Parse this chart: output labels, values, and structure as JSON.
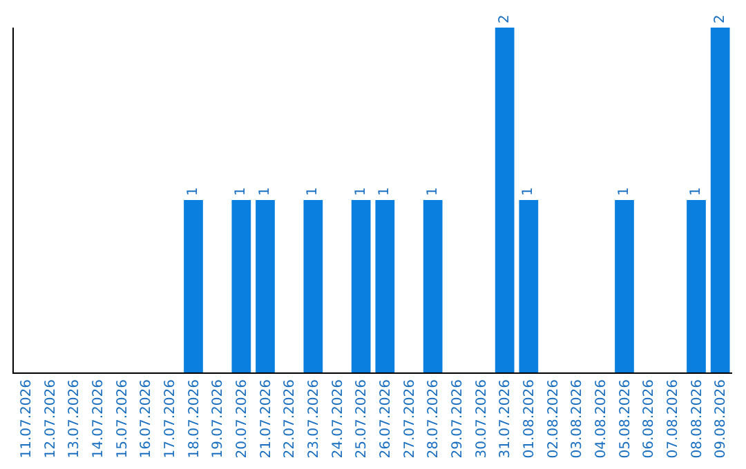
{
  "chart_data": {
    "type": "bar",
    "categories": [
      "11.07.2026",
      "12.07.2026",
      "13.07.2026",
      "14.07.2026",
      "15.07.2026",
      "16.07.2026",
      "17.07.2026",
      "18.07.2026",
      "19.07.2026",
      "20.07.2026",
      "21.07.2026",
      "22.07.2026",
      "23.07.2026",
      "24.07.2026",
      "25.07.2026",
      "26.07.2026",
      "27.07.2026",
      "28.07.2026",
      "29.07.2026",
      "30.07.2026",
      "31.07.2026",
      "01.08.2026",
      "02.08.2026",
      "03.08.2026",
      "04.08.2026",
      "05.08.2026",
      "06.08.2026",
      "07.08.2026",
      "08.08.2026",
      "09.08.2026"
    ],
    "values": [
      0,
      0,
      0,
      0,
      0,
      0,
      0,
      1,
      0,
      1,
      1,
      0,
      1,
      0,
      1,
      1,
      0,
      1,
      0,
      0,
      2,
      1,
      0,
      0,
      0,
      1,
      0,
      0,
      1,
      2
    ],
    "value_labels": [
      null,
      null,
      null,
      null,
      null,
      null,
      null,
      "1",
      null,
      "1",
      "1",
      null,
      "1",
      null,
      "1",
      "1",
      null,
      "1",
      null,
      null,
      "2",
      "1",
      null,
      null,
      null,
      "1",
      null,
      null,
      "1",
      "2"
    ],
    "color": "#0a7fe0",
    "ylim": [
      0,
      2
    ],
    "tick_labels": "x",
    "grid": false
  }
}
